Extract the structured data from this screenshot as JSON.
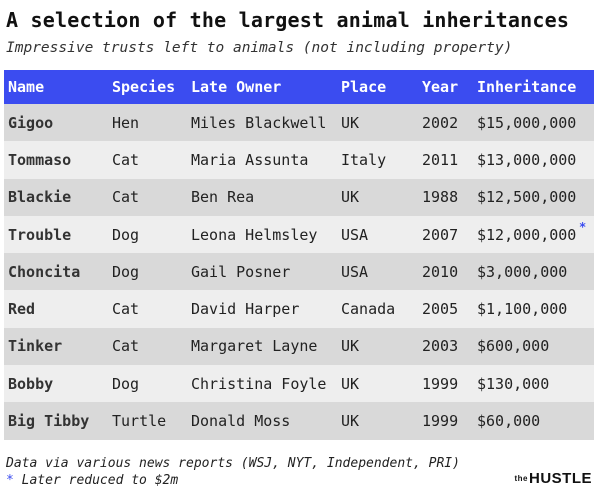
{
  "title": "A selection of the largest animal inheritances",
  "subtitle": "Impressive trusts left to animals (not including property)",
  "colors": {
    "header_bg": "#3b4cf0",
    "row_odd": "#d9d9d9",
    "row_even": "#eeeeee",
    "accent": "#3b4cf0"
  },
  "table": {
    "headers": [
      "Name",
      "Species",
      "Late Owner",
      "Place",
      "Year",
      "Inheritance"
    ],
    "rows": [
      [
        "Gigoo",
        "Hen",
        "Miles Blackwell",
        "UK",
        "2002",
        "$15,000,000"
      ],
      [
        "Tommaso",
        "Cat",
        "Maria Assunta",
        "Italy",
        "2011",
        "$13,000,000"
      ],
      [
        "Blackie",
        "Cat",
        "Ben Rea",
        "UK",
        "1988",
        "$12,500,000"
      ],
      [
        "Trouble",
        "Dog",
        "Leona Helmsley",
        "USA",
        "2007",
        "$12,000,000"
      ],
      [
        "Choncita",
        "Dog",
        "Gail Posner",
        "USA",
        "2010",
        "$3,000,000"
      ],
      [
        "Red",
        "Cat",
        "David Harper",
        "Canada",
        "2005",
        "$1,100,000"
      ],
      [
        "Tinker",
        "Cat",
        "Margaret Layne",
        "UK",
        "2003",
        "$600,000"
      ],
      [
        "Bobby",
        "Dog",
        "Christina Foyle",
        "UK",
        "1999",
        "$130,000"
      ],
      [
        "Big Tibby",
        "Turtle",
        "Donald Moss",
        "UK",
        "1999",
        "$60,000"
      ]
    ],
    "asterisk_mark": "*"
  },
  "footer": {
    "source": "Data via various news reports (WSJ, NYT, Independent, PRI)",
    "note_mark": "*",
    "note": "Later reduced to $2m"
  },
  "brand": {
    "prefix": "the",
    "name": "HUSTLE"
  }
}
